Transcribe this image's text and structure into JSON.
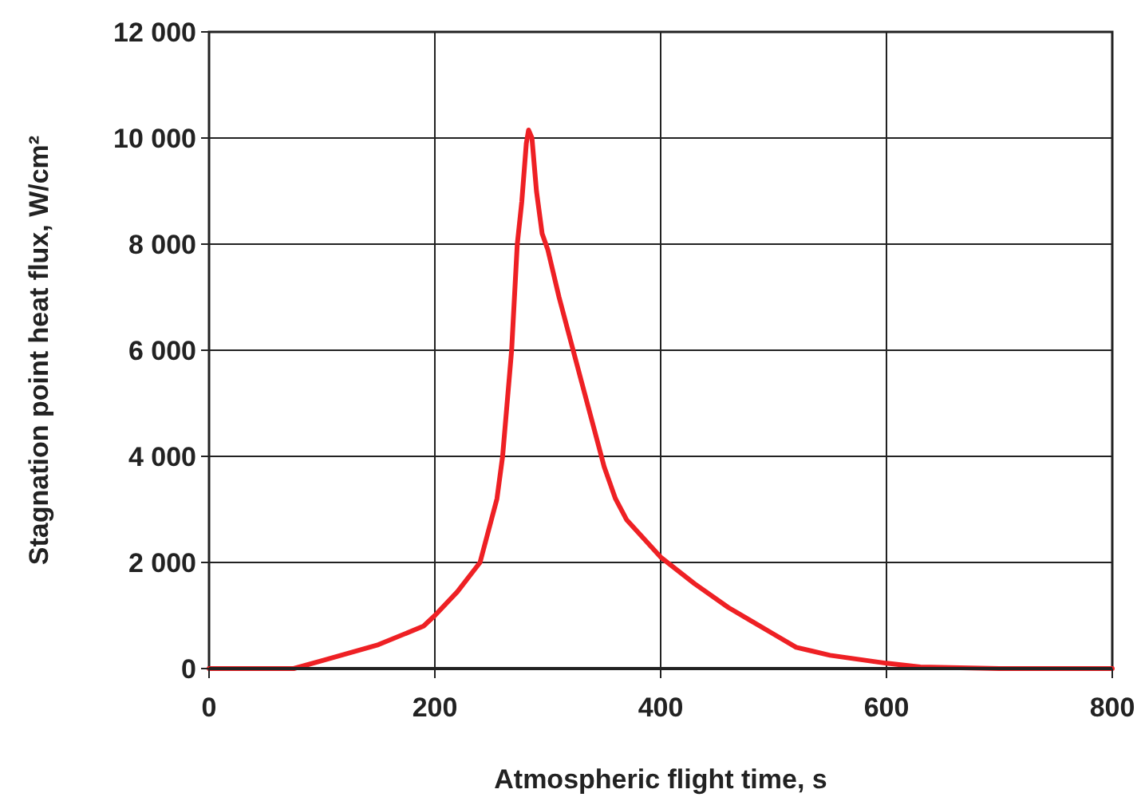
{
  "chart_data": {
    "type": "line",
    "xlabel": "Atmospheric flight time, s",
    "ylabel": "Stagnation point heat flux, W/cm²",
    "xlim": [
      0,
      800
    ],
    "xticks": [
      0,
      200,
      400,
      600,
      800
    ],
    "ylim": [
      0,
      12000
    ],
    "yticks": [
      0,
      {
        "value": 2000,
        "label": "2 000"
      },
      {
        "value": 4000,
        "label": "4 000"
      },
      {
        "value": 6000,
        "label": "6 000"
      },
      {
        "value": 8000,
        "label": "8 000"
      },
      {
        "value": 10000,
        "label": "10 000"
      },
      {
        "value": 12000,
        "label": "12 000"
      }
    ],
    "grid": true,
    "marker": "none",
    "line_style": "solid",
    "series": [
      {
        "color": "#ee2024",
        "x": [
          0,
          50,
          75,
          100,
          150,
          190,
          200,
          220,
          240,
          255,
          260,
          268,
          273,
          277,
          281,
          283,
          286,
          290,
          295,
          300,
          310,
          320,
          330,
          340,
          350,
          360,
          370,
          400,
          430,
          460,
          480,
          500,
          520,
          550,
          600,
          630,
          700,
          800
        ],
        "values": [
          0,
          0,
          0,
          150,
          450,
          800,
          1000,
          1450,
          2000,
          3200,
          4000,
          6000,
          8000,
          8800,
          9900,
          10150,
          10000,
          9000,
          8200,
          7900,
          7000,
          6200,
          5400,
          4600,
          3800,
          3200,
          2800,
          2100,
          1600,
          1150,
          900,
          650,
          400,
          250,
          100,
          30,
          0,
          0
        ]
      }
    ]
  }
}
